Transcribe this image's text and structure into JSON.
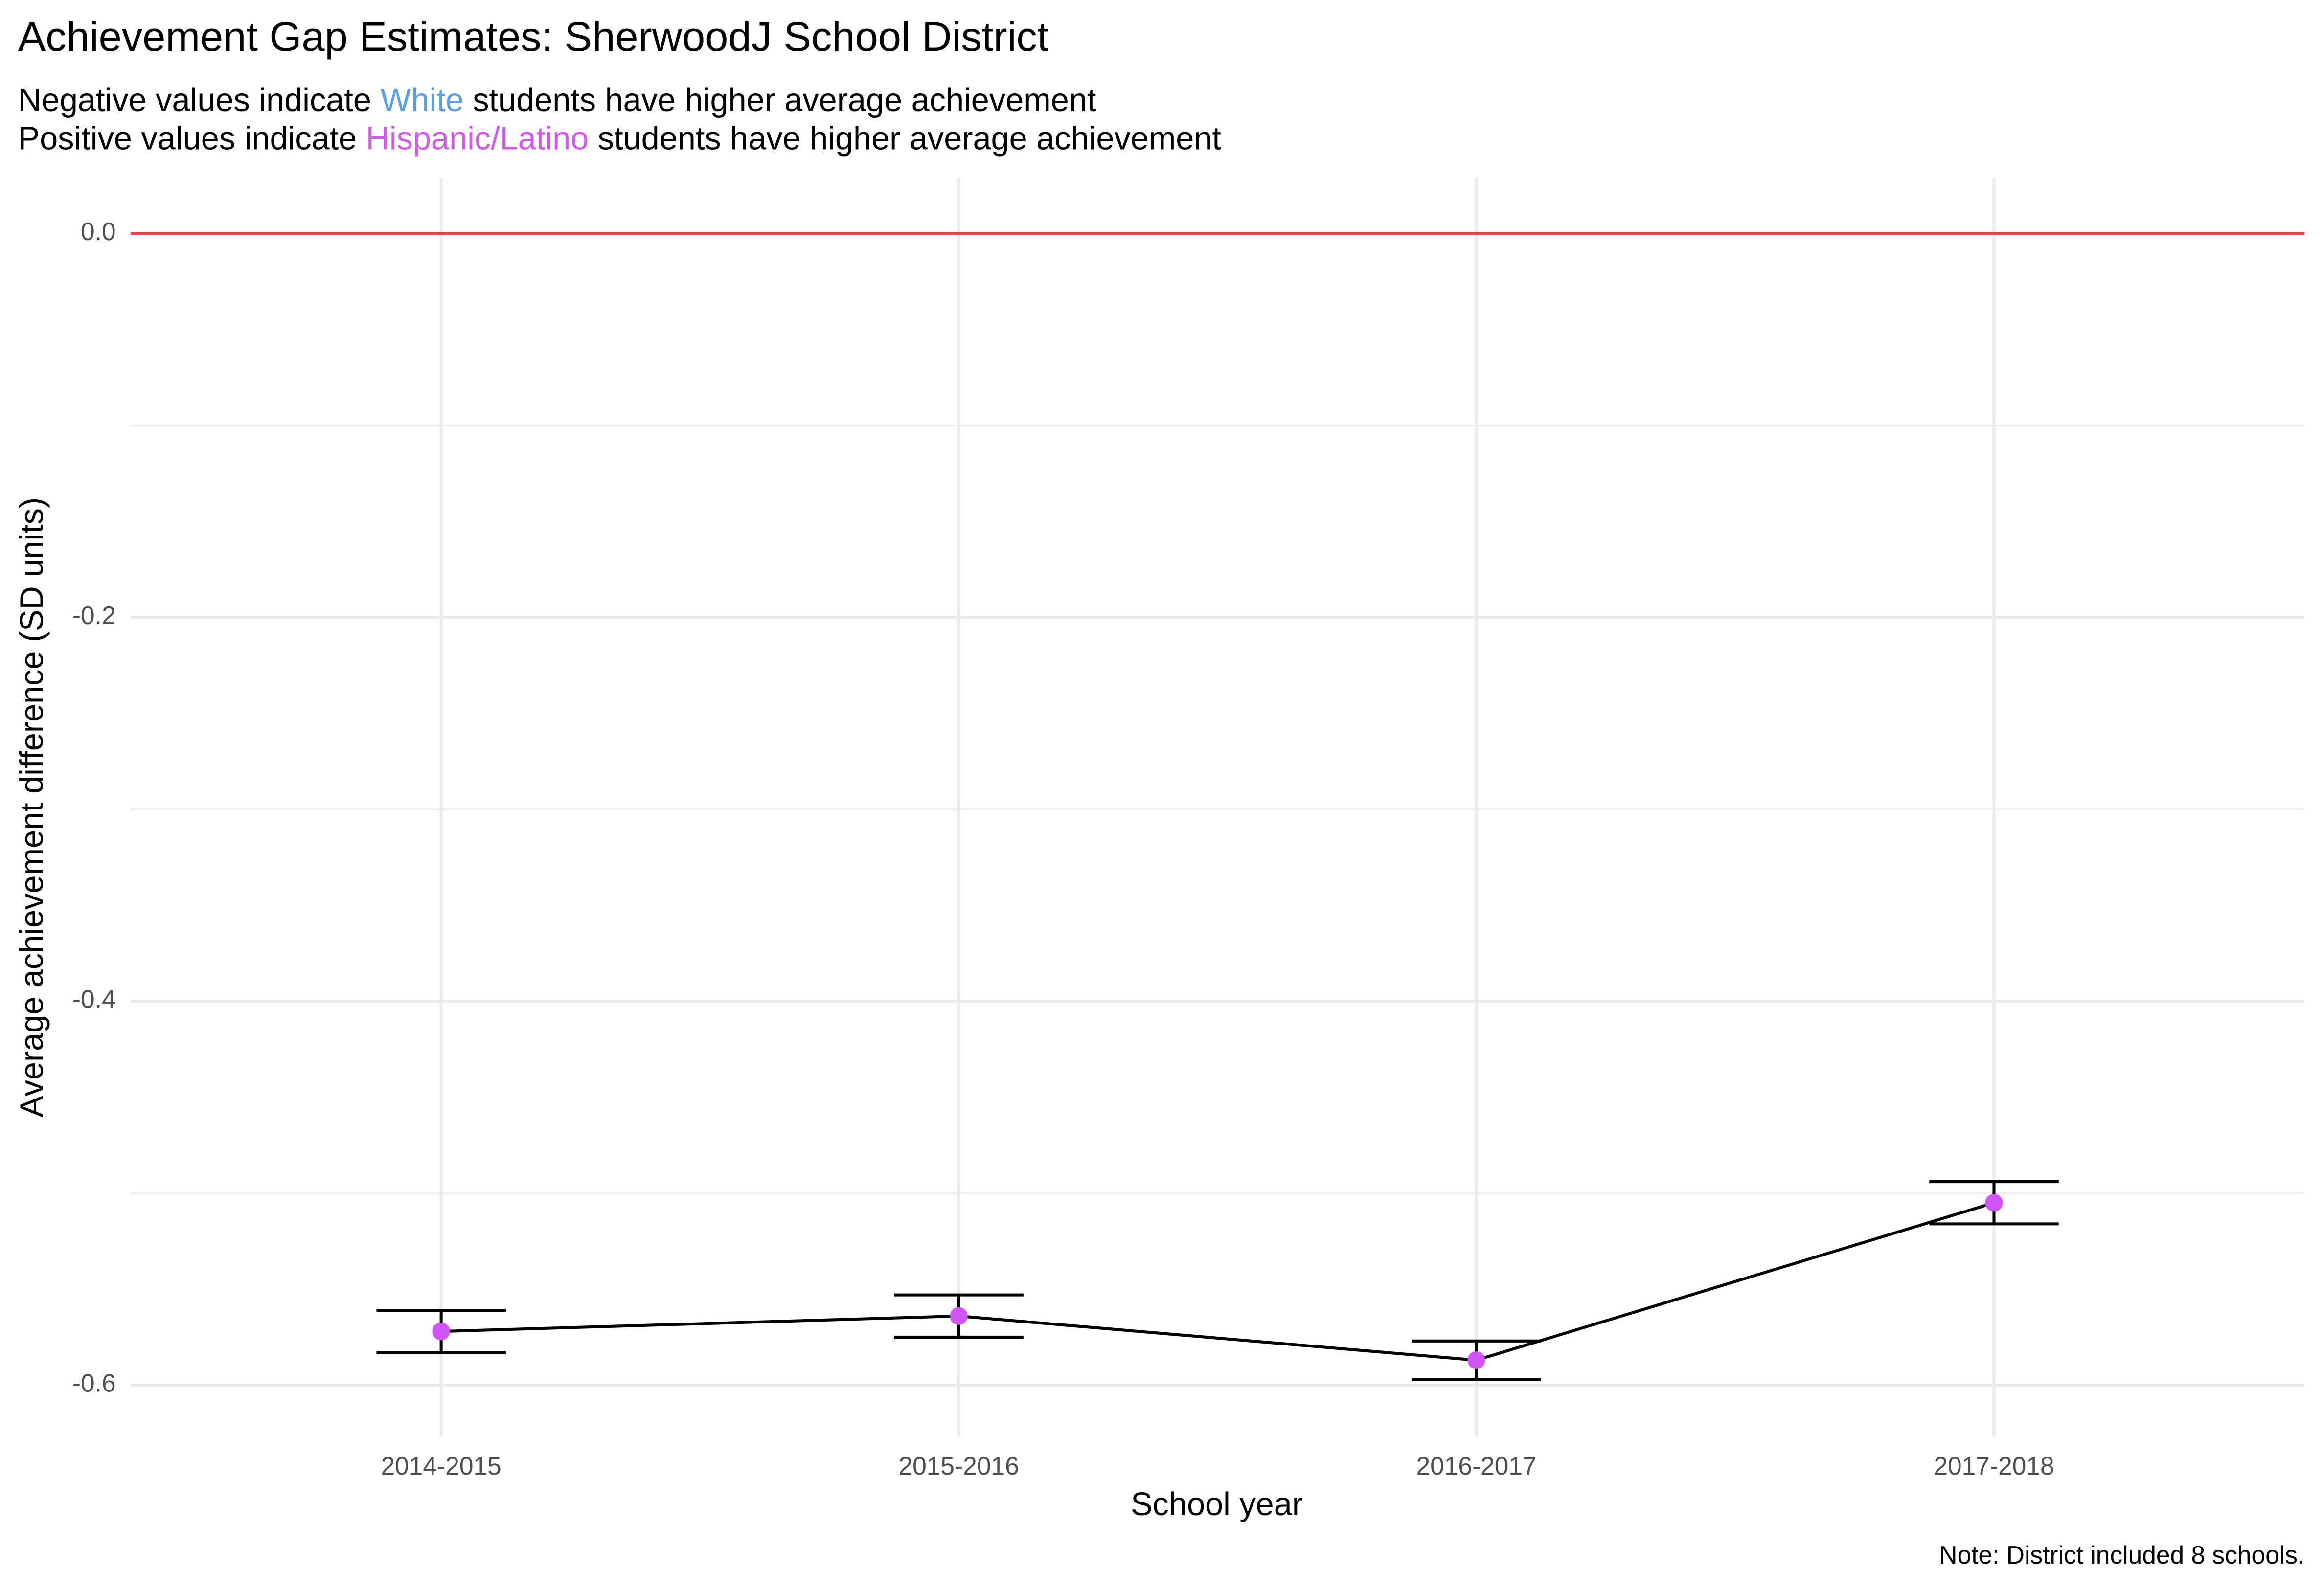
{
  "chart_data": {
    "type": "errorbar-line",
    "title": "Achievement Gap Estimates: SherwoodJ School District",
    "subtitle_lines": [
      [
        {
          "text": "Negative values indicate "
        },
        {
          "text": "White",
          "color": "#5b9ee8"
        },
        {
          "text": " students have higher average achievement"
        }
      ],
      [
        {
          "text": "Positive values indicate "
        },
        {
          "text": "Hispanic/Latino",
          "color": "#d05ae8"
        },
        {
          "text": " students have higher average achievement"
        }
      ]
    ],
    "x_label": "School year",
    "y_label": "Average achievement difference (SD units)",
    "caption": "Note: District included 8 schools.",
    "categories": [
      "2014-2015",
      "2015-2016",
      "2016-2017",
      "2017-2018"
    ],
    "values": [
      -0.572,
      -0.564,
      -0.587,
      -0.505
    ],
    "errors": [
      0.011,
      0.011,
      0.01,
      0.011
    ],
    "point_color": "#d155f5",
    "line_color": "#000000",
    "reference_line": {
      "value": 0,
      "color": "#e8474e"
    },
    "ylim": [
      -0.627,
      0.029
    ],
    "yticks": [
      {
        "value": 0,
        "label": "0.0"
      },
      -0.2,
      -0.4,
      -0.6
    ],
    "minor_yticks": [
      -0.1,
      -0.3,
      -0.5
    ],
    "grid": true
  }
}
